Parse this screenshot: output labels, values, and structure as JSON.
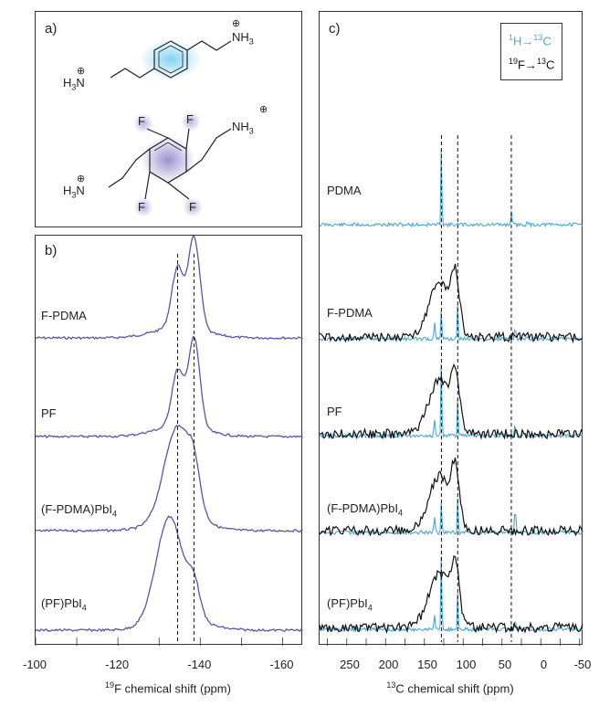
{
  "panels": {
    "a": {
      "label": "a)"
    },
    "b": {
      "label": "b)"
    },
    "c": {
      "label": "c)"
    }
  },
  "colors": {
    "fluorine_spectrum": "#5b55a6",
    "h_to_c": "#4aa8d0",
    "f_to_c": "#111111",
    "benzene_glow": "#7fd0f2",
    "fluoro_glow": "#8a7ec4"
  },
  "molecules": {
    "top": {
      "substituent_top": "NH3",
      "substituent_bottom": "H3N",
      "charge": "+"
    },
    "bottom": {
      "substituent_top": "NH3",
      "substituent_bottom": "H3N",
      "fluorine": "F",
      "charge": "+"
    }
  },
  "legend": {
    "h_to_c": {
      "pre": "1",
      "h": "H",
      "arrow": "→",
      "post_sup": "13",
      "c": "C"
    },
    "f_to_c": {
      "pre": "19",
      "f": "F",
      "arrow": "→",
      "post_sup": "13",
      "c": "C"
    }
  },
  "chart_data": [
    {
      "type": "line",
      "panel": "b",
      "xlabel_sup": "19",
      "xlabel": "F chemical shift (ppm)",
      "xlim": [
        -100,
        -165
      ],
      "ticks": [
        "-100",
        "-120",
        "-140",
        "-160"
      ],
      "dashed_lines_ppm": [
        -134.5,
        -138.5
      ],
      "series": [
        {
          "name": "F-PDMA",
          "name_html": "F-PDMA",
          "peaks": [
            [
              -134.5,
              0.65
            ],
            [
              -138.5,
              1.0
            ]
          ]
        },
        {
          "name": "PF",
          "name_html": "PF",
          "peaks": [
            [
              -134.5,
              0.62
            ],
            [
              -138.5,
              1.0
            ]
          ]
        },
        {
          "name": "(F-PDMA)PbI4",
          "name_main": "(F-PDMA)PbI",
          "name_sub": "4",
          "peaks": [
            [
              -134.5,
              1.0
            ],
            [
              -138.5,
              0.35
            ]
          ]
        },
        {
          "name": "(PF)PbI4",
          "name_main": "(PF)PbI",
          "name_sub": "4",
          "peaks": [
            [
              -132.5,
              1.0
            ],
            [
              -138.5,
              0.3
            ]
          ]
        }
      ]
    },
    {
      "type": "line",
      "panel": "c",
      "xlabel_sup": "13",
      "xlabel": "C chemical shift (ppm)",
      "xlim": [
        290,
        -50
      ],
      "ticks": [
        "250",
        "200",
        "150",
        "100",
        "50",
        "0",
        "-50"
      ],
      "dashed_lines_ppm": [
        133,
        112,
        43
      ],
      "series": [
        {
          "name": "PDMA",
          "name_html": "PDMA"
        },
        {
          "name": "F-PDMA",
          "name_html": "F-PDMA"
        },
        {
          "name": "PF",
          "name_html": "PF"
        },
        {
          "name": "(F-PDMA)PbI4",
          "name_main": "(F-PDMA)PbI",
          "name_sub": "4"
        },
        {
          "name": "(PF)PbI4",
          "name_main": "(PF)PbI",
          "name_sub": "4"
        }
      ]
    }
  ]
}
